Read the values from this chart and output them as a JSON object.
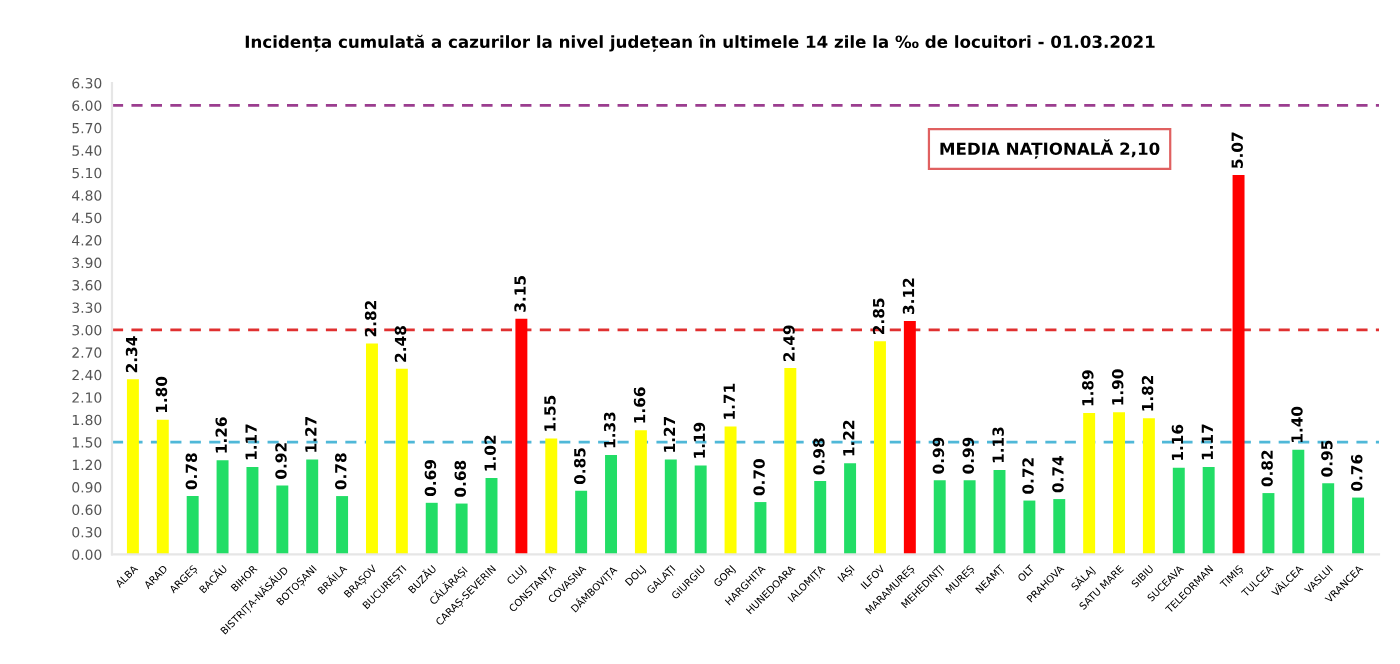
{
  "chart_data": {
    "type": "bar",
    "title": "Incidența cumulată a cazurilor la nivel județean în ultimele 14 zile la ‰ de locuitori - 01.03.2021",
    "categories": [
      "ALBA",
      "ARAD",
      "ARGEȘ",
      "BACĂU",
      "BIHOR",
      "BISTRIȚA-NĂSĂUD",
      "BOTOȘANI",
      "BRĂILA",
      "BRAȘOV",
      "BUCUREȘTI",
      "BUZĂU",
      "CĂLĂRAȘI",
      "CARAȘ-SEVERIN",
      "CLUJ",
      "CONSTANȚA",
      "COVASNA",
      "DÂMBOVIȚA",
      "DOLJ",
      "GALAȚI",
      "GIURGIU",
      "GORJ",
      "HARGHITA",
      "HUNEDOARA",
      "IALOMIȚA",
      "IAȘI",
      "ILFOV",
      "MARAMUREȘ",
      "MEHEDINȚI",
      "MUREȘ",
      "NEAMȚ",
      "OLT",
      "PRAHOVA",
      "SĂLAJ",
      "SATU MARE",
      "SIBIU",
      "SUCEAVA",
      "TELEORMAN",
      "TIMIȘ",
      "TULCEA",
      "VÂLCEA",
      "VASLUI",
      "VRANCEA"
    ],
    "values": [
      2.34,
      1.8,
      0.78,
      1.26,
      1.17,
      0.92,
      1.27,
      0.78,
      2.82,
      2.48,
      0.69,
      0.68,
      1.02,
      3.15,
      1.55,
      0.85,
      1.33,
      1.66,
      1.27,
      1.19,
      1.71,
      0.7,
      2.49,
      0.98,
      1.22,
      2.85,
      3.12,
      0.99,
      0.99,
      1.13,
      0.72,
      0.74,
      1.89,
      1.9,
      1.82,
      1.16,
      1.17,
      5.07,
      0.82,
      1.4,
      0.95,
      0.76
    ],
    "colors": [
      "#ffff00",
      "#ffff00",
      "#22dd66",
      "#22dd66",
      "#22dd66",
      "#22dd66",
      "#22dd66",
      "#22dd66",
      "#ffff00",
      "#ffff00",
      "#22dd66",
      "#22dd66",
      "#22dd66",
      "#ff0000",
      "#ffff00",
      "#22dd66",
      "#22dd66",
      "#ffff00",
      "#22dd66",
      "#22dd66",
      "#ffff00",
      "#22dd66",
      "#ffff00",
      "#22dd66",
      "#22dd66",
      "#ffff00",
      "#ff0000",
      "#22dd66",
      "#22dd66",
      "#22dd66",
      "#22dd66",
      "#22dd66",
      "#ffff00",
      "#ffff00",
      "#ffff00",
      "#22dd66",
      "#22dd66",
      "#ff0000",
      "#22dd66",
      "#22dd66",
      "#22dd66",
      "#22dd66"
    ],
    "value_labels": [
      "2.34",
      "1.80",
      "0.78",
      "1.26",
      "1.17",
      "0.92",
      "1.27",
      "0.78",
      "2.82",
      "2.48",
      "0.69",
      "0.68",
      "1.02",
      "3.15",
      "1.55",
      "0.85",
      "1.33",
      "1.66",
      "1.27",
      "1.19",
      "1.71",
      "0.70",
      "2.49",
      "0.98",
      "1.22",
      "2.85",
      "3.12",
      "0.99",
      "0.99",
      "1.13",
      "0.72",
      "0.74",
      "1.89",
      "1.90",
      "1.82",
      "1.16",
      "1.17",
      "5.07",
      "0.82",
      "1.40",
      "0.95",
      "0.76"
    ],
    "ylim": [
      0,
      6.3
    ],
    "yticks": [
      {
        "value": 0,
        "label": "0.00"
      },
      {
        "value": 0.3,
        "label": "0.30"
      },
      {
        "value": 0.6,
        "label": "0.60"
      },
      {
        "value": 0.9,
        "label": "0.90"
      },
      {
        "value": 1.2,
        "label": "1.20"
      },
      {
        "value": 1.5,
        "label": "1.50"
      },
      {
        "value": 1.8,
        "label": "1.80"
      },
      {
        "value": 2.1,
        "label": "2.10"
      },
      {
        "value": 2.4,
        "label": "2.40"
      },
      {
        "value": 2.7,
        "label": "2.70"
      },
      {
        "value": 3.0,
        "label": "3.00"
      },
      {
        "value": 3.3,
        "label": "3.30"
      },
      {
        "value": 3.6,
        "label": "3.60"
      },
      {
        "value": 3.9,
        "label": "3.90"
      },
      {
        "value": 4.2,
        "label": "4.20"
      },
      {
        "value": 4.5,
        "label": "4.50"
      },
      {
        "value": 4.8,
        "label": "4.80"
      },
      {
        "value": 5.1,
        "label": "5.10"
      },
      {
        "value": 5.4,
        "label": "5.40"
      },
      {
        "value": 5.7,
        "label": "5.70"
      },
      {
        "value": 6.0,
        "label": "6.00"
      },
      {
        "value": 6.3,
        "label": "6.30"
      }
    ],
    "ref_lines": [
      {
        "axis": "y",
        "value": 6.0,
        "color": "#9b3d8f",
        "line_style": "dashed"
      },
      {
        "axis": "y",
        "value": 3.0,
        "color": "#e03030",
        "line_style": "dashed"
      },
      {
        "axis": "y",
        "value": 1.5,
        "color": "#4fb8d8",
        "line_style": "dashed"
      }
    ],
    "annotations": [
      "MEDIA NAȚIONALĂ 2,10"
    ],
    "grid": false,
    "legend": false
  }
}
